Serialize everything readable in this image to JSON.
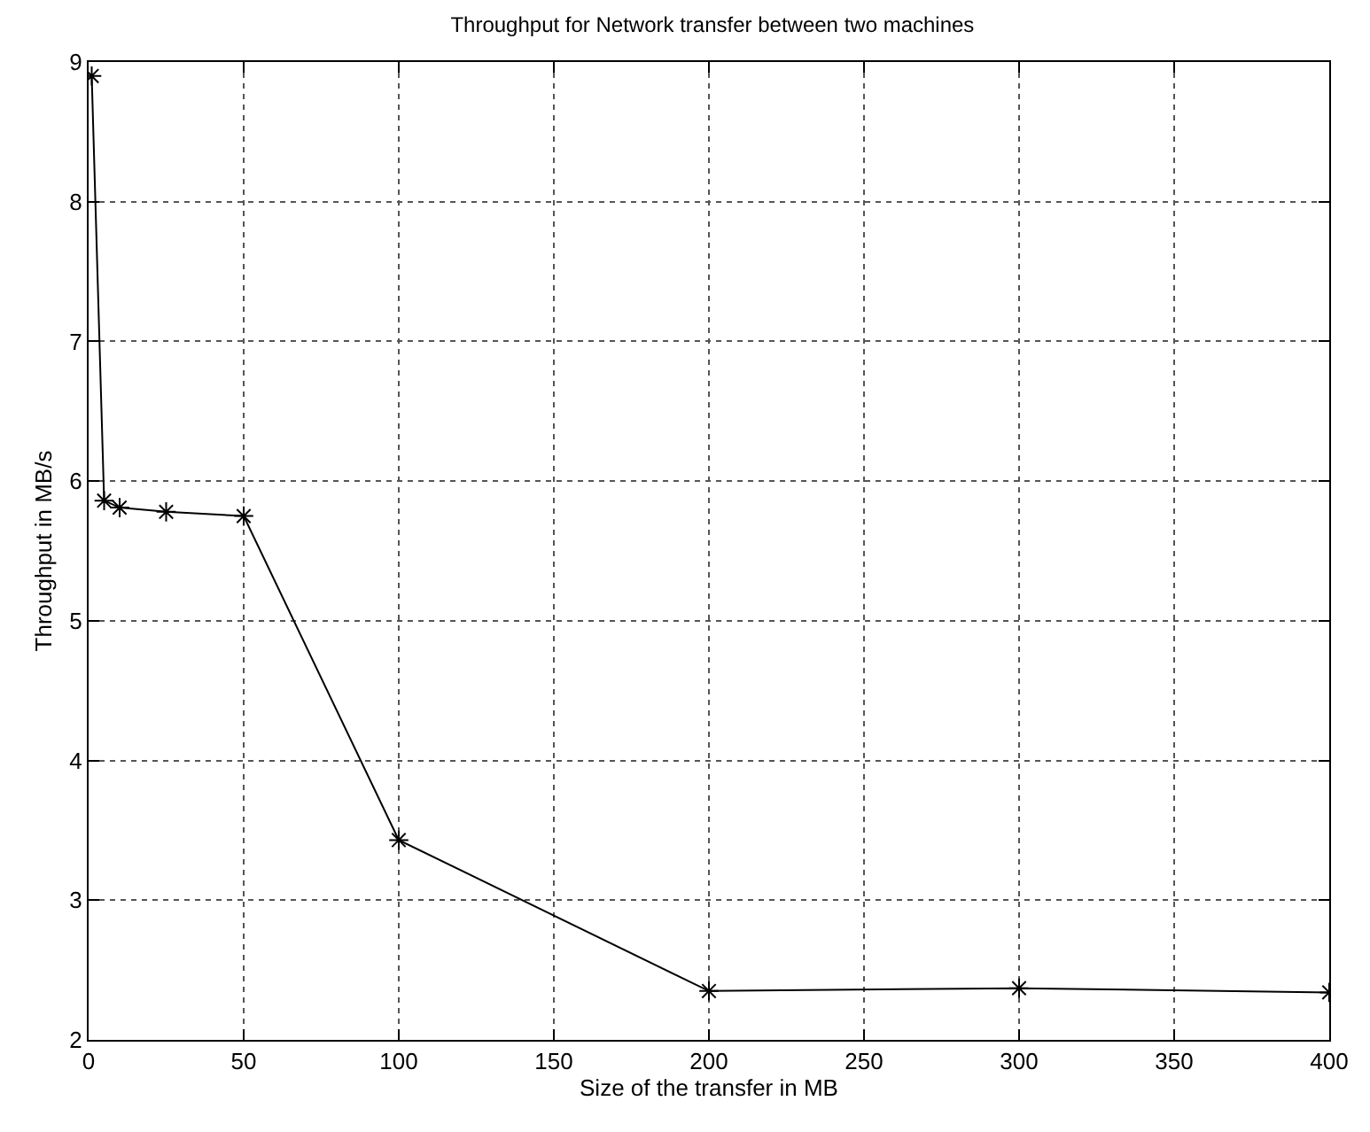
{
  "chart_data": {
    "type": "line",
    "title": "Throughput for Network transfer between two machines",
    "xlabel": "Size of the transfer in MB",
    "ylabel": "Throughput in MB/s",
    "x": [
      1,
      5,
      10,
      25,
      50,
      100,
      200,
      300,
      400
    ],
    "series": [
      {
        "color": "#000000",
        "values": [
          8.9,
          5.86,
          5.81,
          5.78,
          5.75,
          3.43,
          2.35,
          2.37,
          2.34
        ]
      }
    ],
    "xlim": [
      0,
      400
    ],
    "xticks": [
      0,
      50,
      100,
      150,
      200,
      250,
      300,
      350,
      400
    ],
    "ylim": [
      2,
      9
    ],
    "yticks": [
      2,
      3,
      4,
      5,
      6,
      7,
      8,
      9
    ],
    "grid": true,
    "marker": "cross",
    "line_style": "solid"
  }
}
